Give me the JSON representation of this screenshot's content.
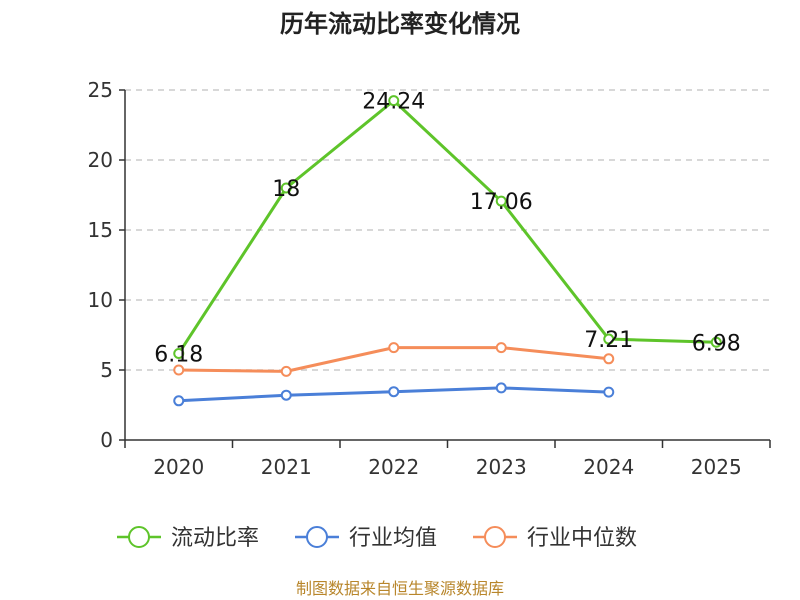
{
  "title": "历年流动比率变化情况",
  "source": "制图数据来自恒生聚源数据库",
  "chart_data": {
    "type": "line",
    "title": "历年流动比率变化情况",
    "xlabel": "",
    "ylabel": "",
    "categories": [
      "2020",
      "2021",
      "2022",
      "2023",
      "2024",
      "2025"
    ],
    "ylim": [
      0,
      25
    ],
    "yticks": [
      "0",
      "5",
      "10",
      "15",
      "20",
      "25"
    ],
    "grid": true,
    "legend_position": "bottom",
    "series": [
      {
        "name": "流动比率",
        "color": "#5ec42a",
        "values": [
          6.18,
          18,
          24.24,
          17.06,
          7.21,
          6.98
        ],
        "labels": [
          "6.18",
          "18",
          "24.24",
          "17.06",
          "7.21",
          "6.98"
        ]
      },
      {
        "name": "行业均值",
        "color": "#4a7fd8",
        "values": [
          2.8,
          3.2,
          3.45,
          3.72,
          3.42,
          null
        ]
      },
      {
        "name": "行业中位数",
        "color": "#f58d5a",
        "values": [
          5.0,
          4.9,
          6.6,
          6.6,
          5.8,
          null
        ]
      }
    ]
  }
}
